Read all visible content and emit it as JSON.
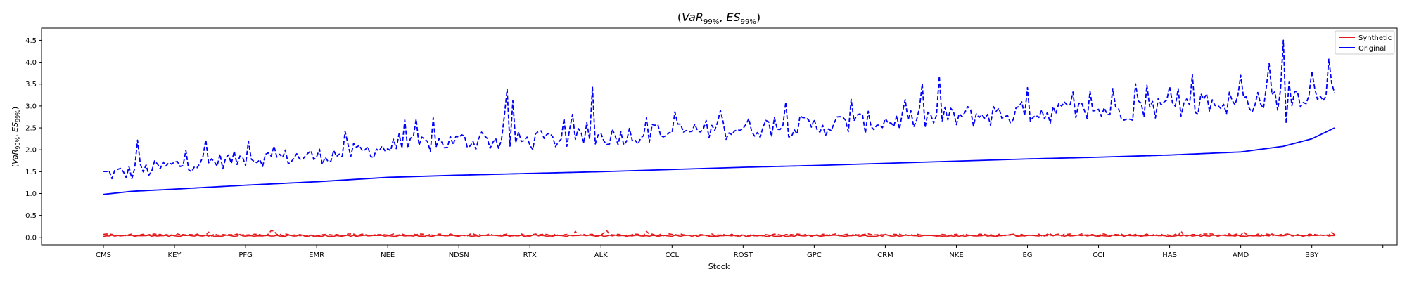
{
  "chart_data": {
    "type": "line",
    "title": "(VaR_{99%}, ES_{99%})",
    "xlabel": "Stock",
    "ylabel": "(VaR_{99%}, ES_{99%})",
    "ylim": [
      -0.18,
      4.78
    ],
    "yticks": [
      0.0,
      0.5,
      1.0,
      1.5,
      2.0,
      2.5,
      3.0,
      3.5,
      4.0,
      4.5
    ],
    "ytick_labels": [
      "0.0",
      "0.5",
      "1.0",
      "1.5",
      "2.0",
      "2.5",
      "3.0",
      "3.5",
      "4.0",
      "4.5"
    ],
    "categories": [
      "CMS",
      "KEY",
      "PFG",
      "EMR",
      "NEE",
      "NDSN",
      "RTX",
      "ALK",
      "CCL",
      "ROST",
      "GPC",
      "CRM",
      "NKE",
      "EG",
      "CCI",
      "HAS",
      "AMD",
      "BBY"
    ],
    "n_stocks": 434,
    "tick_every": 25,
    "grid": false,
    "legend_position": "top-right",
    "legend": [
      {
        "name": "Synthetic",
        "color": "#e41a1c"
      },
      {
        "name": "Original",
        "color": "#0000ff"
      }
    ],
    "series": [
      {
        "name": "Original",
        "metric": "VaR",
        "style": "solid",
        "color": "#0000ff",
        "anchors_index": [
          0,
          10,
          25,
          50,
          75,
          100,
          125,
          150,
          175,
          200,
          225,
          250,
          275,
          300,
          325,
          350,
          375,
          400,
          415,
          425,
          433
        ],
        "anchors_value": [
          0.98,
          1.05,
          1.1,
          1.19,
          1.27,
          1.37,
          1.42,
          1.46,
          1.5,
          1.55,
          1.6,
          1.64,
          1.69,
          1.74,
          1.79,
          1.83,
          1.88,
          1.95,
          2.08,
          2.25,
          2.5
        ]
      },
      {
        "name": "Original",
        "metric": "ES",
        "style": "dashed",
        "color": "#0000ff",
        "anchors_index": [
          0,
          10,
          25,
          50,
          75,
          100,
          125,
          150,
          175,
          200,
          225,
          250,
          275,
          300,
          325,
          350,
          375,
          400,
          415,
          425,
          433
        ],
        "anchors_value": [
          1.45,
          1.48,
          1.65,
          1.8,
          1.85,
          2.05,
          2.2,
          2.2,
          2.3,
          2.4,
          2.5,
          2.55,
          2.65,
          2.75,
          2.85,
          2.9,
          3.0,
          3.1,
          3.2,
          3.3,
          3.45
        ],
        "spikes": [
          {
            "index": 12,
            "value": 2.22
          },
          {
            "index": 51,
            "value": 2.2
          },
          {
            "index": 85,
            "value": 2.42
          },
          {
            "index": 110,
            "value": 2.7
          },
          {
            "index": 142,
            "value": 3.38
          },
          {
            "index": 144,
            "value": 3.12
          },
          {
            "index": 172,
            "value": 3.44
          },
          {
            "index": 217,
            "value": 2.9
          },
          {
            "index": 263,
            "value": 3.15
          },
          {
            "index": 294,
            "value": 3.68
          },
          {
            "index": 325,
            "value": 3.42
          },
          {
            "index": 355,
            "value": 3.4
          },
          {
            "index": 383,
            "value": 3.72
          },
          {
            "index": 400,
            "value": 3.7
          },
          {
            "index": 410,
            "value": 3.97
          },
          {
            "index": 415,
            "value": 4.5
          },
          {
            "index": 416,
            "value": 2.6
          },
          {
            "index": 425,
            "value": 3.8
          },
          {
            "index": 431,
            "value": 4.07
          },
          {
            "index": 433,
            "value": 3.3
          }
        ]
      },
      {
        "name": "Synthetic",
        "metric": "VaR",
        "style": "solid",
        "color": "#e41a1c",
        "mean": 0.035,
        "range": [
          0.01,
          0.08
        ]
      },
      {
        "name": "Synthetic",
        "metric": "ES",
        "style": "dashed",
        "color": "#e41a1c",
        "mean": 0.055,
        "range": [
          0.02,
          0.16
        ]
      }
    ]
  }
}
